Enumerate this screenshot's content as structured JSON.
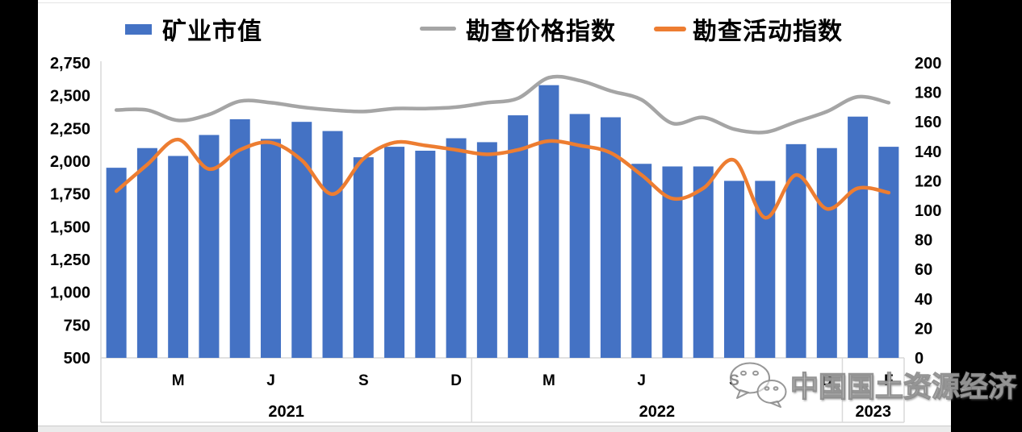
{
  "legend": {
    "items": [
      {
        "label": "矿业市值",
        "marker": "bar",
        "color": "#4472C4"
      },
      {
        "label": "勘查价格指数",
        "marker": "line",
        "color": "#A5A5A5"
      },
      {
        "label": "勘查活动指数",
        "marker": "line",
        "color": "#ED7D31"
      }
    ]
  },
  "watermark": {
    "text": "中国国土资源经济",
    "icon": "wechat-icon"
  },
  "chart_data": {
    "type": "bar",
    "subtype": "combo-bar-line",
    "categories": [
      "2021-01",
      "2021-02",
      "2021-03",
      "2021-04",
      "2021-05",
      "2021-06",
      "2021-07",
      "2021-08",
      "2021-09",
      "2021-10",
      "2021-11",
      "2021-12",
      "2022-01",
      "2022-02",
      "2022-03",
      "2022-04",
      "2022-05",
      "2022-06",
      "2022-07",
      "2022-08",
      "2022-09",
      "2022-10",
      "2022-11",
      "2022-12",
      "2023-01",
      "2023-02"
    ],
    "series": [
      {
        "name": "矿业市值",
        "type": "bar",
        "axis": "left",
        "color": "#4472C4",
        "values": [
          1950,
          2100,
          2040,
          2200,
          2320,
          2170,
          2300,
          2230,
          2030,
          2110,
          2080,
          2175,
          2145,
          2350,
          2580,
          2360,
          2335,
          1980,
          1960,
          1960,
          1850,
          1850,
          2130,
          2100,
          2340,
          2110
        ]
      },
      {
        "name": "勘查价格指数",
        "type": "line",
        "axis": "right",
        "color": "#A5A5A5",
        "values": [
          168,
          168,
          161,
          165,
          174,
          173,
          170,
          168,
          167,
          169,
          169,
          170,
          173,
          176,
          190,
          188,
          181,
          175,
          159,
          163,
          155,
          153,
          160,
          167,
          177,
          173
        ]
      },
      {
        "name": "勘查活动指数",
        "type": "line",
        "axis": "right",
        "color": "#ED7D31",
        "values": [
          113,
          131,
          148,
          128,
          141,
          146,
          134,
          111,
          135,
          146,
          144,
          141,
          138,
          141,
          147,
          144,
          139,
          124,
          108,
          115,
          134,
          95,
          124,
          101,
          115,
          112
        ]
      }
    ],
    "left_axis": {
      "min": 500,
      "max": 2750,
      "step": 250,
      "ticks": [
        "2,750",
        "2,500",
        "2,250",
        "2,000",
        "1,750",
        "1,500",
        "1,250",
        "1,000",
        "750",
        "500"
      ]
    },
    "right_axis": {
      "min": 0,
      "max": 200,
      "step": 20,
      "ticks": [
        "200",
        "180",
        "160",
        "140",
        "120",
        "100",
        "80",
        "60",
        "40",
        "20",
        "0"
      ]
    },
    "x_axis": {
      "month_ticks": [
        {
          "label": "M",
          "index": 2
        },
        {
          "label": "J",
          "index": 5
        },
        {
          "label": "S",
          "index": 8
        },
        {
          "label": "D",
          "index": 11
        },
        {
          "label": "M",
          "index": 14
        },
        {
          "label": "J",
          "index": 17
        },
        {
          "label": "S",
          "index": 20
        },
        {
          "label": "D",
          "index": 23
        },
        {
          "label": "F",
          "index": 25
        }
      ],
      "year_groups": [
        {
          "label": "2021",
          "start": 0,
          "end": 11
        },
        {
          "label": "2022",
          "start": 12,
          "end": 23
        },
        {
          "label": "2023",
          "start": 24,
          "end": 25
        }
      ]
    },
    "grid": false,
    "legend_position": "top"
  }
}
